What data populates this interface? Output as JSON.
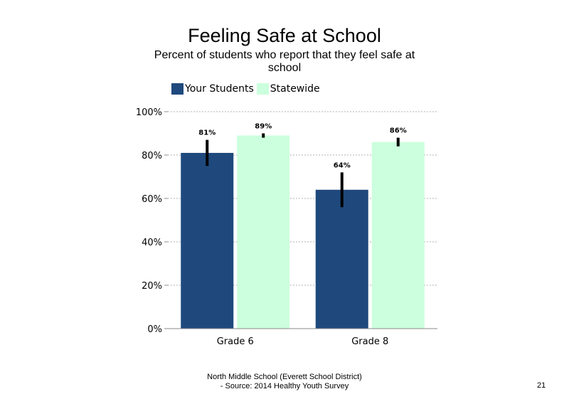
{
  "chart_data": {
    "type": "bar",
    "title": "Feeling Safe at School",
    "subtitle": "Percent of students  who report that they feel safe at school",
    "categories": [
      "Grade 6",
      "Grade 8"
    ],
    "series": [
      {
        "name": "Your Students",
        "color": "#1f497d",
        "values": [
          81,
          64
        ],
        "labels": [
          "81%",
          "64%"
        ],
        "error_low": [
          75,
          56
        ],
        "error_high": [
          87,
          72
        ]
      },
      {
        "name": "Statewide",
        "color": "#ccffdd",
        "values": [
          89,
          86
        ],
        "labels": [
          "89%",
          "86%"
        ],
        "error_low": [
          88,
          84
        ],
        "error_high": [
          90,
          88
        ]
      }
    ],
    "yticks": [
      "0%",
      "20%",
      "40%",
      "60%",
      "80%",
      "100%"
    ],
    "ylim": [
      0,
      100
    ],
    "grid": true,
    "legend": "top"
  },
  "footer": {
    "line1": "North Middle School (Everett School District)",
    "line2": "- Source: 2014 Healthy  Youth Survey"
  },
  "page_number": "21"
}
